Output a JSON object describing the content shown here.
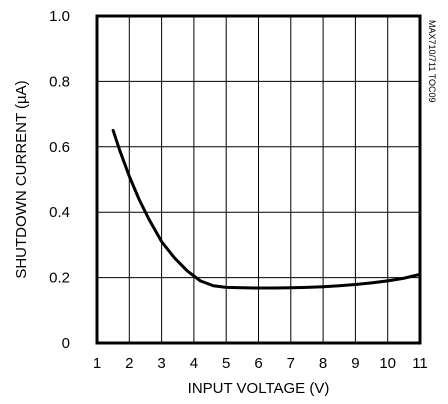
{
  "chart_data": {
    "type": "line",
    "title": "",
    "xlabel": "INPUT VOLTAGE (V)",
    "ylabel": "SHUTDOWN CURRENT (µA)",
    "side_label": "MAX710/711 TOC09",
    "xlim": [
      1,
      11
    ],
    "ylim": [
      0,
      1.0
    ],
    "xticks": [
      1,
      2,
      3,
      4,
      5,
      6,
      7,
      8,
      9,
      10,
      11
    ],
    "xtick_labels": [
      "1",
      "2",
      "3",
      "4",
      "5",
      "6",
      "7",
      "8",
      "9",
      "10",
      "11"
    ],
    "yticks": [
      0,
      0.2,
      0.4,
      0.6,
      0.8,
      1.0
    ],
    "ytick_labels": [
      "0",
      "0.2",
      "0.4",
      "0.6",
      "0.8",
      "1.0"
    ],
    "grid": true,
    "series": [
      {
        "x": [
          1.5,
          1.7,
          2.0,
          2.3,
          2.6,
          3.0,
          3.4,
          3.8,
          4.2,
          4.6,
          5.0,
          5.5,
          6.0,
          6.5,
          7.0,
          7.5,
          8.0,
          8.5,
          9.0,
          9.5,
          10.0,
          10.5,
          11.0
        ],
        "y": [
          0.65,
          0.59,
          0.51,
          0.44,
          0.38,
          0.31,
          0.26,
          0.22,
          0.19,
          0.175,
          0.17,
          0.169,
          0.168,
          0.168,
          0.169,
          0.17,
          0.172,
          0.175,
          0.179,
          0.184,
          0.19,
          0.198,
          0.21
        ]
      }
    ]
  }
}
